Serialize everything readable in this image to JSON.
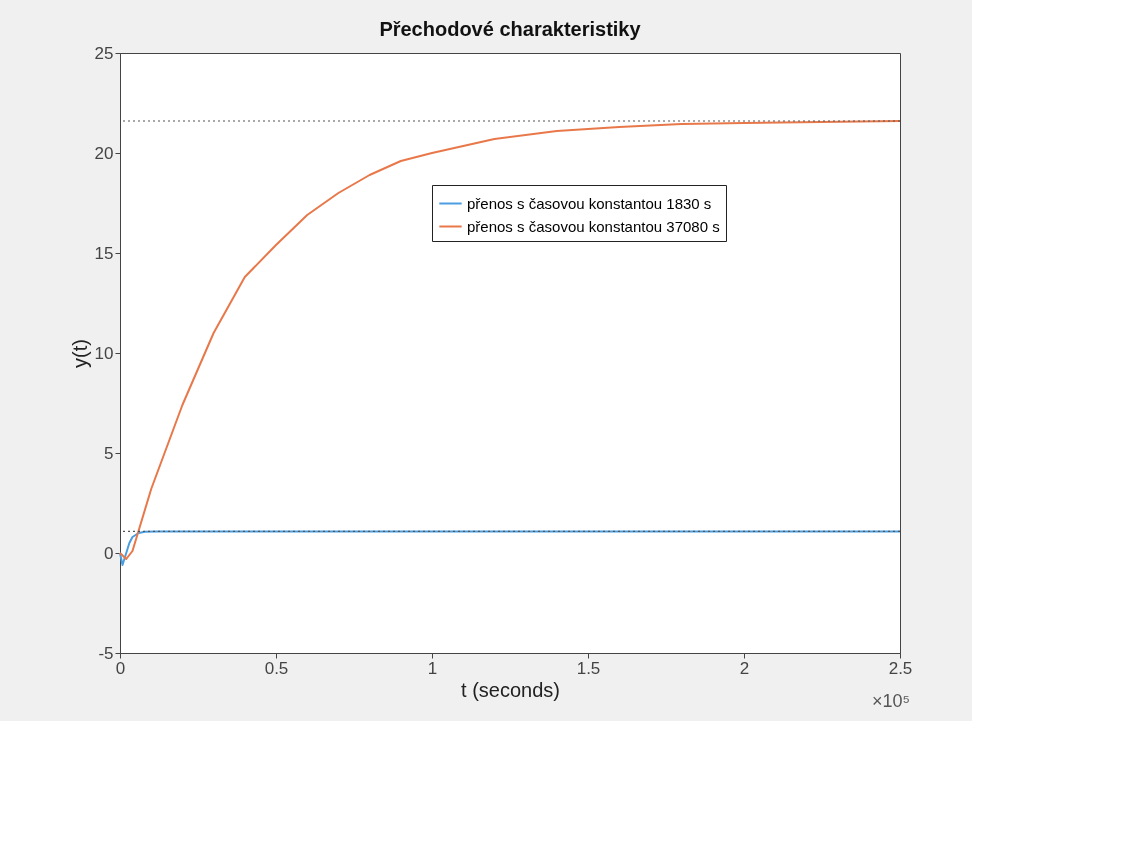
{
  "chart_data": {
    "type": "line",
    "title": "Přechodové charakteristiky",
    "xlabel": "t (seconds)",
    "ylabel": "y(t)",
    "xlim": [
      0,
      2.5
    ],
    "xticks": [
      0,
      0.5,
      1,
      1.5,
      2,
      2.5
    ],
    "ylim": [
      -5,
      25
    ],
    "yticks": [
      -5,
      0,
      5,
      10,
      15,
      20,
      25
    ],
    "series": [
      {
        "name": "přenos s časovou konstantou 1830 s",
        "color": "#4a9de0",
        "x": [
          0,
          0.008,
          0.02,
          0.03,
          0.04,
          0.06,
          0.08,
          0.12,
          2.5
        ],
        "values": [
          0,
          -0.6,
          0.0,
          0.5,
          0.8,
          1.0,
          1.06,
          1.08,
          1.08
        ]
      },
      {
        "name": "přenos s časovou konstantou 37080 s",
        "color": "#e8784a",
        "x": [
          0,
          0.02,
          0.04,
          0.1,
          0.2,
          0.3,
          0.4,
          0.5,
          0.6,
          0.7,
          0.8,
          0.9,
          1.0,
          1.2,
          1.4,
          1.6,
          1.8,
          2.0,
          2.5
        ],
        "values": [
          0,
          -0.3,
          0.1,
          3.2,
          7.4,
          11.0,
          13.8,
          15.4,
          16.9,
          18.0,
          18.9,
          19.6,
          20.0,
          20.7,
          21.1,
          21.3,
          21.45,
          21.5,
          21.6
        ]
      }
    ],
    "ref_lines": [
      {
        "axis": "y",
        "value": 21.6,
        "color": "#555555",
        "line_style": "dotted"
      },
      {
        "axis": "y",
        "value": 1.08,
        "color": "#555555",
        "line_style": "dotted"
      }
    ],
    "annotations": [
      "×10⁵"
    ],
    "legend": "top right",
    "grid": false,
    "line_style": "solid",
    "marker": "none"
  }
}
